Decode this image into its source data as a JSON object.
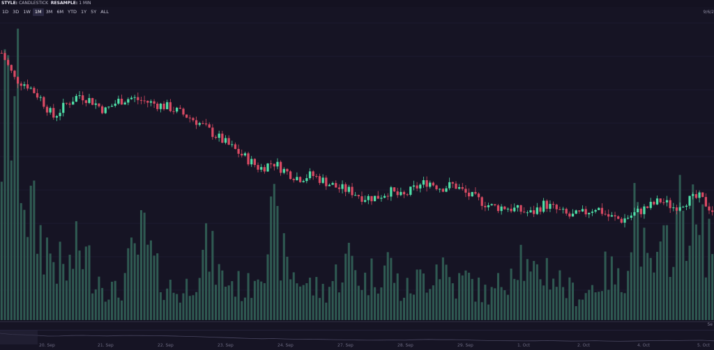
{
  "toolbar": {
    "style_label": "STYLE:",
    "style_value": "CANDLESTICK",
    "resample_label": "RESAMPLE:",
    "resample_value": "1 MIN"
  },
  "ranges": [
    "1D",
    "3D",
    "1W",
    "1M",
    "3M",
    "6M",
    "YTD",
    "1Y",
    "5Y",
    "ALL"
  ],
  "active_range": "1M",
  "date_stamp": "9/6/2",
  "axis_tail": "Se",
  "colors": {
    "up": "#4fe0a8",
    "down": "#d94a63",
    "volume": "#2f5a52",
    "grid": "#22203a",
    "bg": "#161424"
  },
  "chart_data": {
    "type": "candlestick",
    "x_tick_labels": [
      "20. Sep",
      "21. Sep",
      "22. Sep",
      "23. Sep",
      "24. Sep",
      "27. Sep",
      "28. Sep",
      "29. Sep",
      "1. Oct",
      "2. Oct",
      "4. Oct",
      "5. Oct"
    ],
    "price_trend": [
      100,
      92,
      90,
      86,
      80,
      84,
      87,
      85,
      82,
      85,
      86,
      85,
      84,
      83,
      81,
      79,
      76,
      73,
      70,
      67,
      64,
      66,
      63,
      61,
      62,
      60,
      58,
      57,
      55,
      55,
      57,
      55,
      58,
      60,
      58,
      59,
      56,
      54,
      52,
      52,
      51,
      50,
      53,
      51,
      49,
      50,
      52,
      49,
      48,
      50,
      52,
      54,
      52,
      54,
      55,
      51
    ],
    "volume_trend": [
      90,
      110,
      55,
      40,
      30,
      22,
      35,
      25,
      18,
      12,
      28,
      40,
      22,
      16,
      12,
      25,
      34,
      20,
      18,
      14,
      30,
      46,
      26,
      20,
      16,
      14,
      22,
      30,
      18,
      24,
      28,
      12,
      18,
      22,
      30,
      16,
      20,
      14,
      12,
      22,
      35,
      18,
      26,
      20,
      14,
      12,
      18,
      24,
      16,
      60,
      22,
      28,
      45,
      55,
      38,
      42
    ],
    "candle_count": 220
  }
}
